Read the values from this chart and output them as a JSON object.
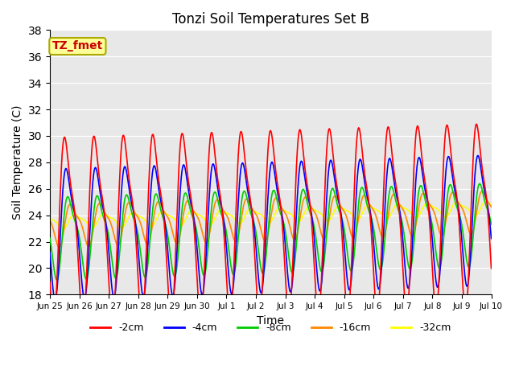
{
  "title": "Tonzi Soil Temperatures Set B",
  "xlabel": "Time",
  "ylabel": "Soil Temperature (C)",
  "ylim": [
    18,
    38
  ],
  "yticks": [
    18,
    20,
    22,
    24,
    26,
    28,
    30,
    32,
    34,
    36,
    38
  ],
  "colors": {
    "-2cm": "#ff0000",
    "-4cm": "#0000ff",
    "-8cm": "#00cc00",
    "-16cm": "#ff8800",
    "-32cm": "#ffff00"
  },
  "legend_labels": [
    "-2cm",
    "-4cm",
    "-8cm",
    "-16cm",
    "-32cm"
  ],
  "annotation_text": "TZ_fmet",
  "annotation_color": "#cc0000",
  "annotation_bg": "#ffff99",
  "annotation_edge": "#aaaa00",
  "background_color": "#e8e8e8",
  "plot_bg": "#e8e8e8",
  "fig_bg": "#ffffff",
  "x_tick_labels": [
    "Jun 25",
    "Jun 26",
    "Jun 27",
    "Jun 28",
    "Jun 29",
    "Jun 30",
    "Jul 1",
    "Jul 2",
    "Jul 3",
    "Jul 4",
    "Jul 5",
    "Jul 6",
    "Jul 7",
    "Jul 8",
    "Jul 9",
    "Jul 10"
  ],
  "n_days": 15,
  "samples_per_day": 48,
  "figsize": [
    6.4,
    4.8
  ],
  "dpi": 100
}
